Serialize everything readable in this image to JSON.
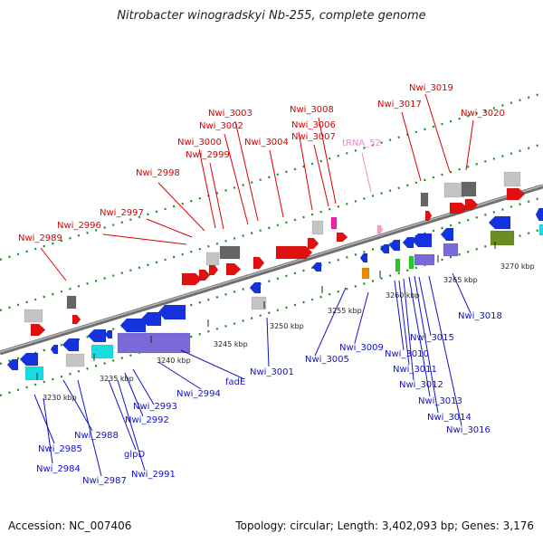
{
  "title": "Nitrobacter winogradskyi Nb-255, complete genome",
  "footer": {
    "accession": "Accession: NC_007406",
    "summary": "Topology: circular; Length: 3,402,093 bp; Genes: 3,176"
  },
  "colors": {
    "backbone": "#8e8e8e",
    "top_label": "#dd0000",
    "bottom_label": "#1111cc",
    "trna_label": "#ee88cc",
    "tick_green": "#1a8a1a"
  },
  "scale_ticks": [
    "3230 kbp",
    "3235 kbp",
    "3240 kbp",
    "3245 kbp",
    "3250 kbp",
    "3255 kbp",
    "3260 kbp",
    "3265 kbp",
    "3270 kbp"
  ],
  "top_labels": [
    "Nwi_2989",
    "Nwi_2996",
    "Nwi_2997",
    "Nwi_2998",
    "Nwi_2999",
    "Nwi_3000",
    "Nwi_3002",
    "Nwi_3003",
    "Nwi_3004",
    "Nwi_3006",
    "Nwi_3007",
    "Nwi_3008",
    "tRNA_52",
    "Nwi_3017",
    "Nwi_3019",
    "Nwi_3020"
  ],
  "bottom_labels": [
    "Nwi_2985",
    "Nwi_2984",
    "Nwi_2988",
    "Nwi_2987",
    "glpD",
    "Nwi_2991",
    "Nwi_2992",
    "Nwi_2993",
    "Nwi_2994",
    "fadE",
    "Nwi_3001",
    "Nwi_3005",
    "Nwi_3009",
    "Nwi_3010",
    "Nwi_3011",
    "Nwi_3012",
    "Nwi_3013",
    "Nwi_3014",
    "Nwi_3015",
    "Nwi_3016",
    "Nwi_3018"
  ]
}
